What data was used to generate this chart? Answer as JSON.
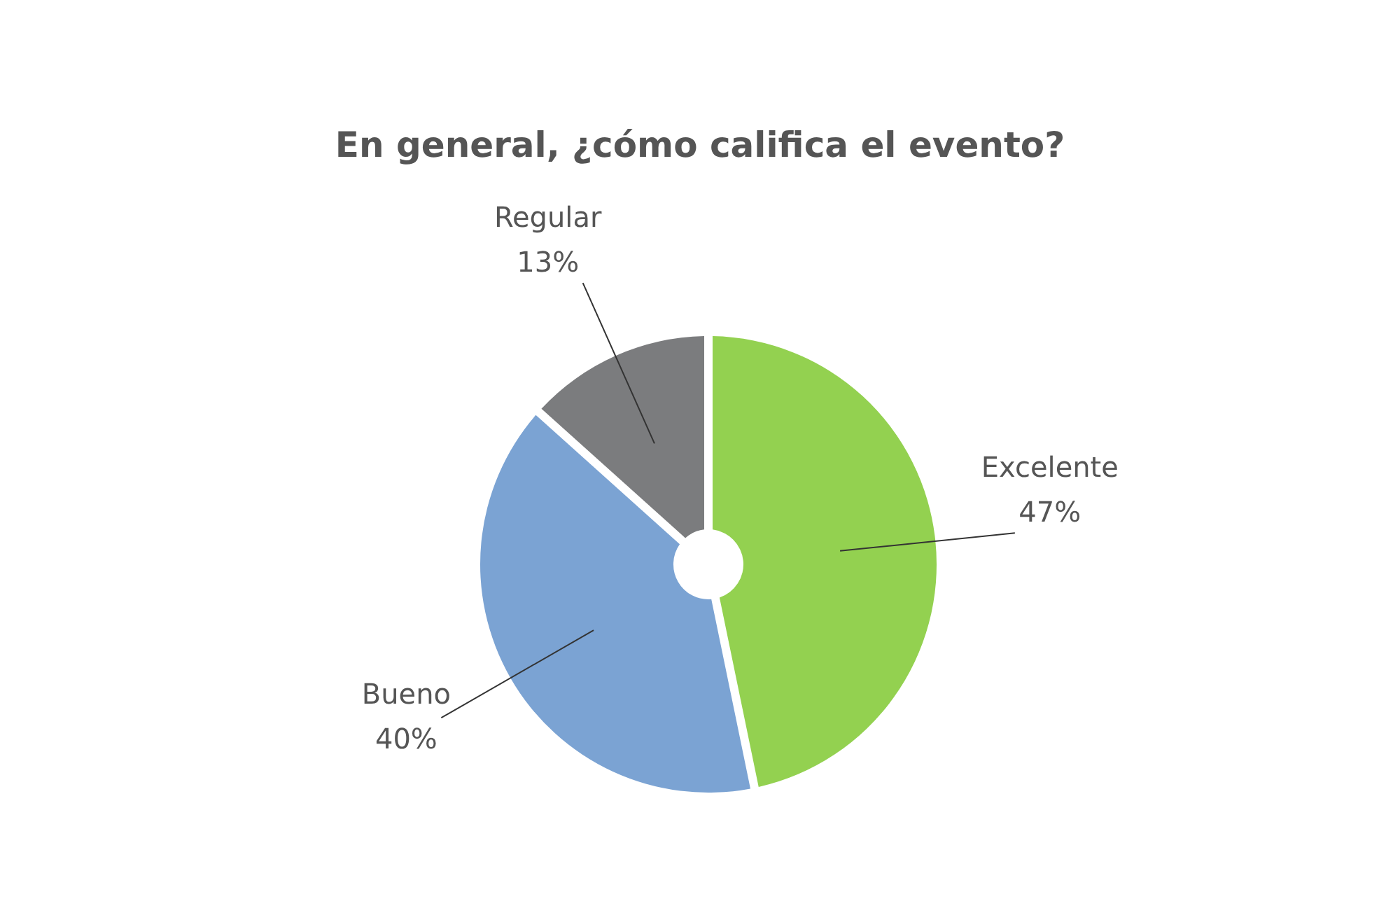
{
  "chart_data": {
    "type": "donut",
    "title": "En general, ¿cómo califica el evento?",
    "categories": [
      "Excelente",
      "Bueno",
      "Regular"
    ],
    "values": [
      47,
      40,
      13
    ],
    "colors": [
      "#93d150",
      "#7ba3d3",
      "#7b7c7e"
    ],
    "value_labels": [
      "47%",
      "40%",
      "13%"
    ]
  }
}
